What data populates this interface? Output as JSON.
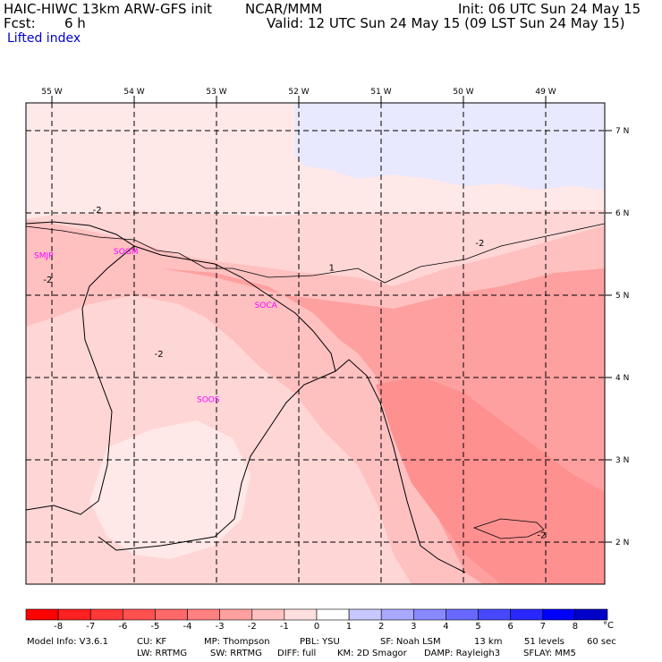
{
  "header": {
    "title": "HAIC-HIWC 13km ARW-GFS init",
    "org": "NCAR/MMM",
    "init": "Init: 06 UTC Sun 24 May 15",
    "fcst_label": "Fcst:",
    "fcst_value": "6 h",
    "valid": "Valid: 12 UTC Sun 24 May 15 (09 LST Sun 24 May 15)",
    "field": "Lifted index"
  },
  "lon_ticks": [
    "55 W",
    "54 W",
    "53 W",
    "52 W",
    "51 W",
    "50 W",
    "49 W"
  ],
  "lat_ticks": [
    "7 N",
    "6 N",
    "5 N",
    "4 N",
    "3 N",
    "2 N"
  ],
  "stations": [
    {
      "name": "SMJP",
      "lon": -55.1,
      "lat": 5.45
    },
    {
      "name": "SOGM",
      "lon": -54.1,
      "lat": 5.5
    },
    {
      "name": "SOCA",
      "lon": -52.4,
      "lat": 4.85
    },
    {
      "name": "SOOS",
      "lon": -53.1,
      "lat": 3.7
    }
  ],
  "contour_labels": [
    {
      "text": "-2",
      "lon": -54.45,
      "lat": 6.0
    },
    {
      "text": "-2",
      "lon": -55.05,
      "lat": 5.15
    },
    {
      "text": "1",
      "lon": -51.6,
      "lat": 5.3
    },
    {
      "text": "-2",
      "lon": -53.7,
      "lat": 4.25
    },
    {
      "text": "-2",
      "lon": -49.8,
      "lat": 5.6
    },
    {
      "text": "-2",
      "lon": -49.05,
      "lat": 2.05
    }
  ],
  "colorbar": {
    "labels": [
      "-8",
      "-7",
      "-6",
      "-5",
      "-4",
      "-3",
      "-2",
      "-1",
      "0",
      "1",
      "2",
      "3",
      "4",
      "5",
      "6",
      "7",
      "8"
    ],
    "unit": "°C",
    "colors": [
      "#ff0000",
      "#ff2020",
      "#ff3838",
      "#ff5050",
      "#ff6868",
      "#ff8080",
      "#ffa0a0",
      "#ffc0c0",
      "#ffe0e0",
      "#ffffff",
      "#c8c8ff",
      "#a8a8ff",
      "#8888ff",
      "#6868ff",
      "#4848ff",
      "#2828ff",
      "#0000ff",
      "#0000c8"
    ]
  },
  "model_info": {
    "line1": [
      "Model Info: V3.6.1",
      "CU: KF",
      "MP: Thompson",
      "PBL: YSU",
      "SF: Noah LSM",
      "13 km",
      "51 levels",
      "60 sec"
    ],
    "line2": [
      "LW: RRTMG",
      "SW: RRTMG",
      "DIFF: full",
      "KM: 2D Smagor",
      "DAMP: Rayleigh3",
      "SFLAY: MM5"
    ]
  },
  "map": {
    "lon_range": [
      -55.3,
      -48.3
    ],
    "lat_range": [
      1.5,
      7.4
    ],
    "gridlines": "dashed",
    "colors": {
      "bg": "#ffd6d6",
      "light": "#ffe8e8",
      "mid": "#ffc0c0",
      "strong": "#ffa0a0",
      "stronger": "#ff9090",
      "positive": "#e8e8ff",
      "station": "#ff00ff"
    }
  }
}
